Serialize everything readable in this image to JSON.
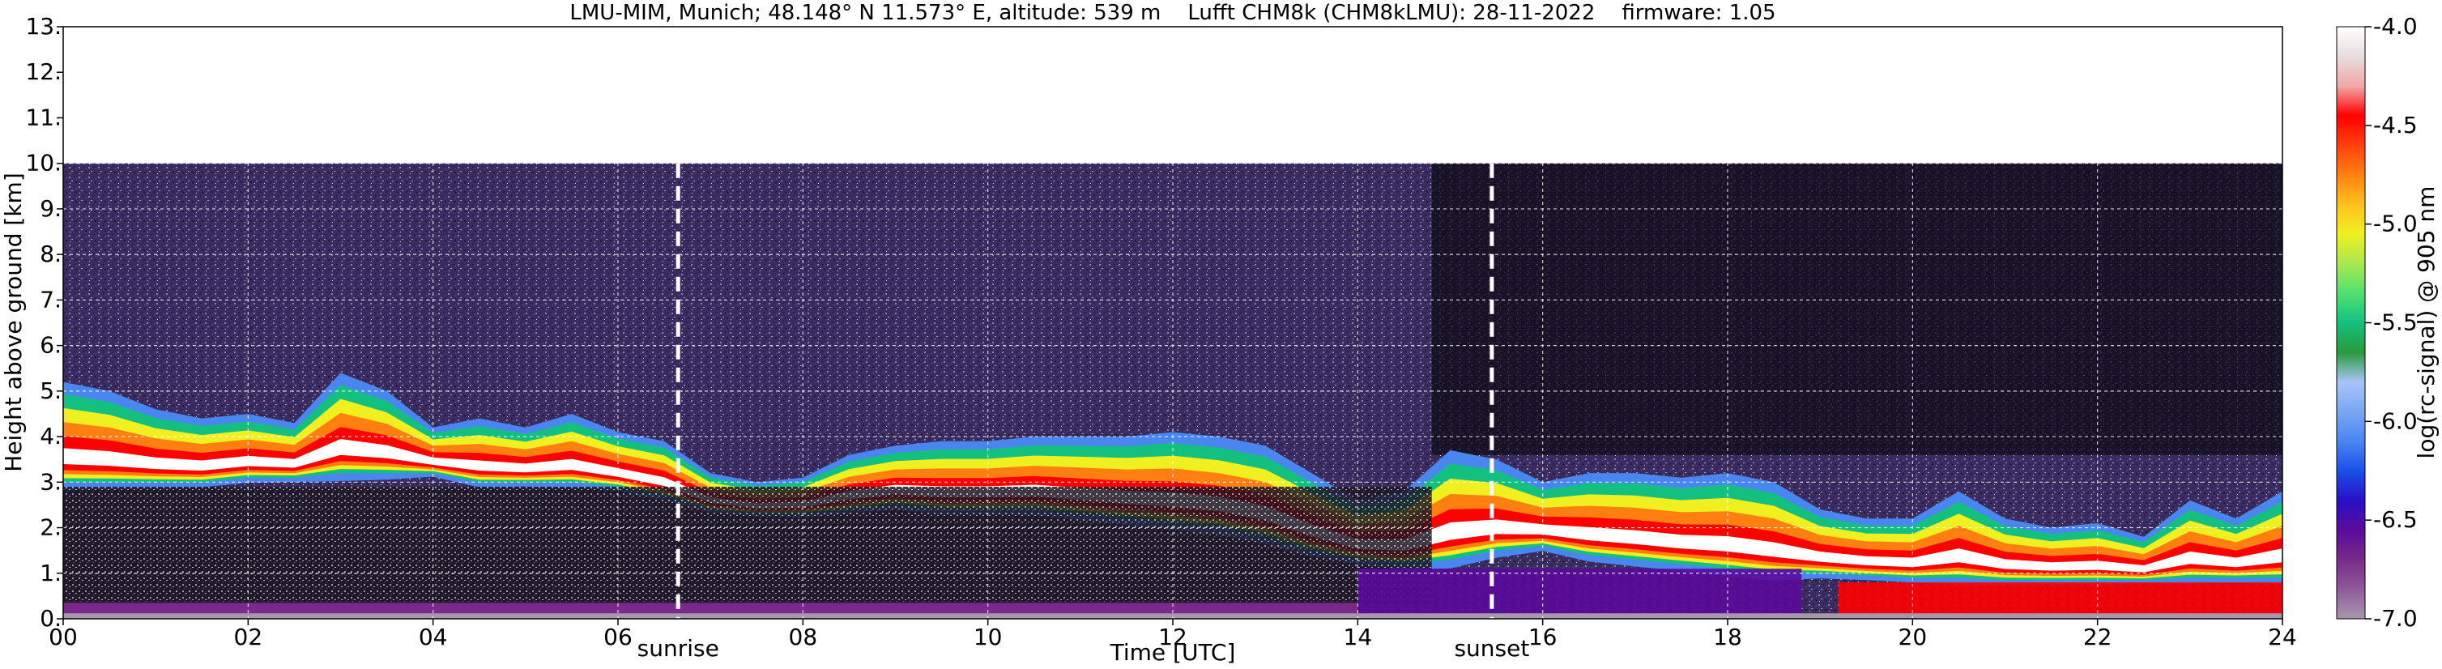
{
  "chart_data": {
    "type": "heatmap",
    "title": "LMU-MIM, Munich; 48.148° N 11.573° E, altitude: 539 m    Lufft CHM8k (CHM8kLMU): 28-11-2022    firmware: 1.05",
    "xlabel": "Time [UTC]",
    "ylabel": "Height above ground [km]",
    "colorbar_label": "log(rc-signal) @ 905 nm",
    "xlim": [
      0,
      24
    ],
    "ylim": [
      0,
      13
    ],
    "x_ticks": [
      0,
      2,
      4,
      6,
      8,
      10,
      12,
      14,
      16,
      18,
      20,
      22,
      24
    ],
    "x_tick_labels": [
      "00",
      "02",
      "04",
      "06",
      "08",
      "10",
      "12",
      "14",
      "16",
      "18",
      "20",
      "22",
      "24"
    ],
    "y_ticks": [
      0,
      1,
      2,
      3,
      4,
      5,
      6,
      7,
      8,
      9,
      10,
      11,
      12,
      13
    ],
    "y_tick_labels": [
      "0.",
      "1.",
      "2.",
      "3.",
      "4.",
      "5.",
      "6.",
      "7.",
      "8.",
      "9.",
      "10.",
      "11.",
      "12.",
      "13."
    ],
    "color_range": [
      -7.0,
      -4.0
    ],
    "colorbar_ticks": [
      -7.0,
      -6.5,
      -6.0,
      -5.5,
      -5.0,
      -4.5,
      -4.0
    ],
    "colorbar_tick_labels": [
      "-7.0",
      "-6.5",
      "-6.0",
      "-5.5",
      "-5.0",
      "-4.5",
      "-4.0"
    ],
    "colormap": [
      "#a898ac",
      "#8e5a9a",
      "#7a2a8a",
      "#5a0a9a",
      "#2a10c8",
      "#1a50e8",
      "#4a86f0",
      "#7aa6f4",
      "#a8c4f8",
      "#2a9a3a",
      "#14c080",
      "#50e070",
      "#a8e850",
      "#f0f020",
      "#ffc020",
      "#ff8010",
      "#ff4010",
      "#ff0000",
      "#f0a8a8",
      "#e8dede",
      "#ffffff"
    ],
    "grid": true,
    "data_top_km": 10.0,
    "markers": [
      {
        "label": "sunrise",
        "time": 6.65
      },
      {
        "label": "sunset",
        "time": 15.45
      }
    ],
    "cloud_layer": {
      "times": [
        0,
        0.5,
        1,
        1.5,
        2,
        2.5,
        3,
        3.5,
        4,
        4.5,
        5,
        5.5,
        6,
        6.5,
        7,
        7.5,
        8,
        8.5,
        9,
        9.5,
        10,
        10.5,
        11,
        11.5,
        12,
        12.5,
        13,
        13.5,
        14,
        14.5,
        15,
        15.5,
        16,
        16.5,
        17,
        17.5,
        18,
        18.5,
        19,
        19.5,
        20,
        20.5,
        21,
        21.5,
        22,
        22.5,
        23,
        23.5,
        24
      ],
      "base_km": [
        3.0,
        3.0,
        3.0,
        3.0,
        3.1,
        3.1,
        3.2,
        3.2,
        3.2,
        3.0,
        3.0,
        3.0,
        2.9,
        2.7,
        2.4,
        2.3,
        2.3,
        2.4,
        2.5,
        2.4,
        2.4,
        2.4,
        2.3,
        2.2,
        2.1,
        2.0,
        1.8,
        1.5,
        1.3,
        1.2,
        1.3,
        1.5,
        1.6,
        1.4,
        1.3,
        1.2,
        1.1,
        1.0,
        1.0,
        0.95,
        0.9,
        0.9,
        0.85,
        0.85,
        0.85,
        0.85,
        0.9,
        0.9,
        0.9
      ],
      "top_km": [
        5.2,
        5.0,
        4.6,
        4.4,
        4.5,
        4.3,
        5.4,
        5.0,
        4.2,
        4.4,
        4.2,
        4.5,
        4.1,
        3.9,
        3.2,
        3.0,
        3.1,
        3.6,
        3.8,
        3.9,
        3.9,
        4.0,
        4.0,
        4.0,
        4.1,
        4.0,
        3.8,
        3.2,
        2.6,
        2.8,
        3.7,
        3.5,
        3.0,
        3.2,
        3.2,
        3.1,
        3.2,
        3.0,
        2.4,
        2.2,
        2.2,
        2.8,
        2.2,
        2.0,
        2.1,
        1.8,
        2.6,
        2.2,
        2.8
      ]
    }
  }
}
